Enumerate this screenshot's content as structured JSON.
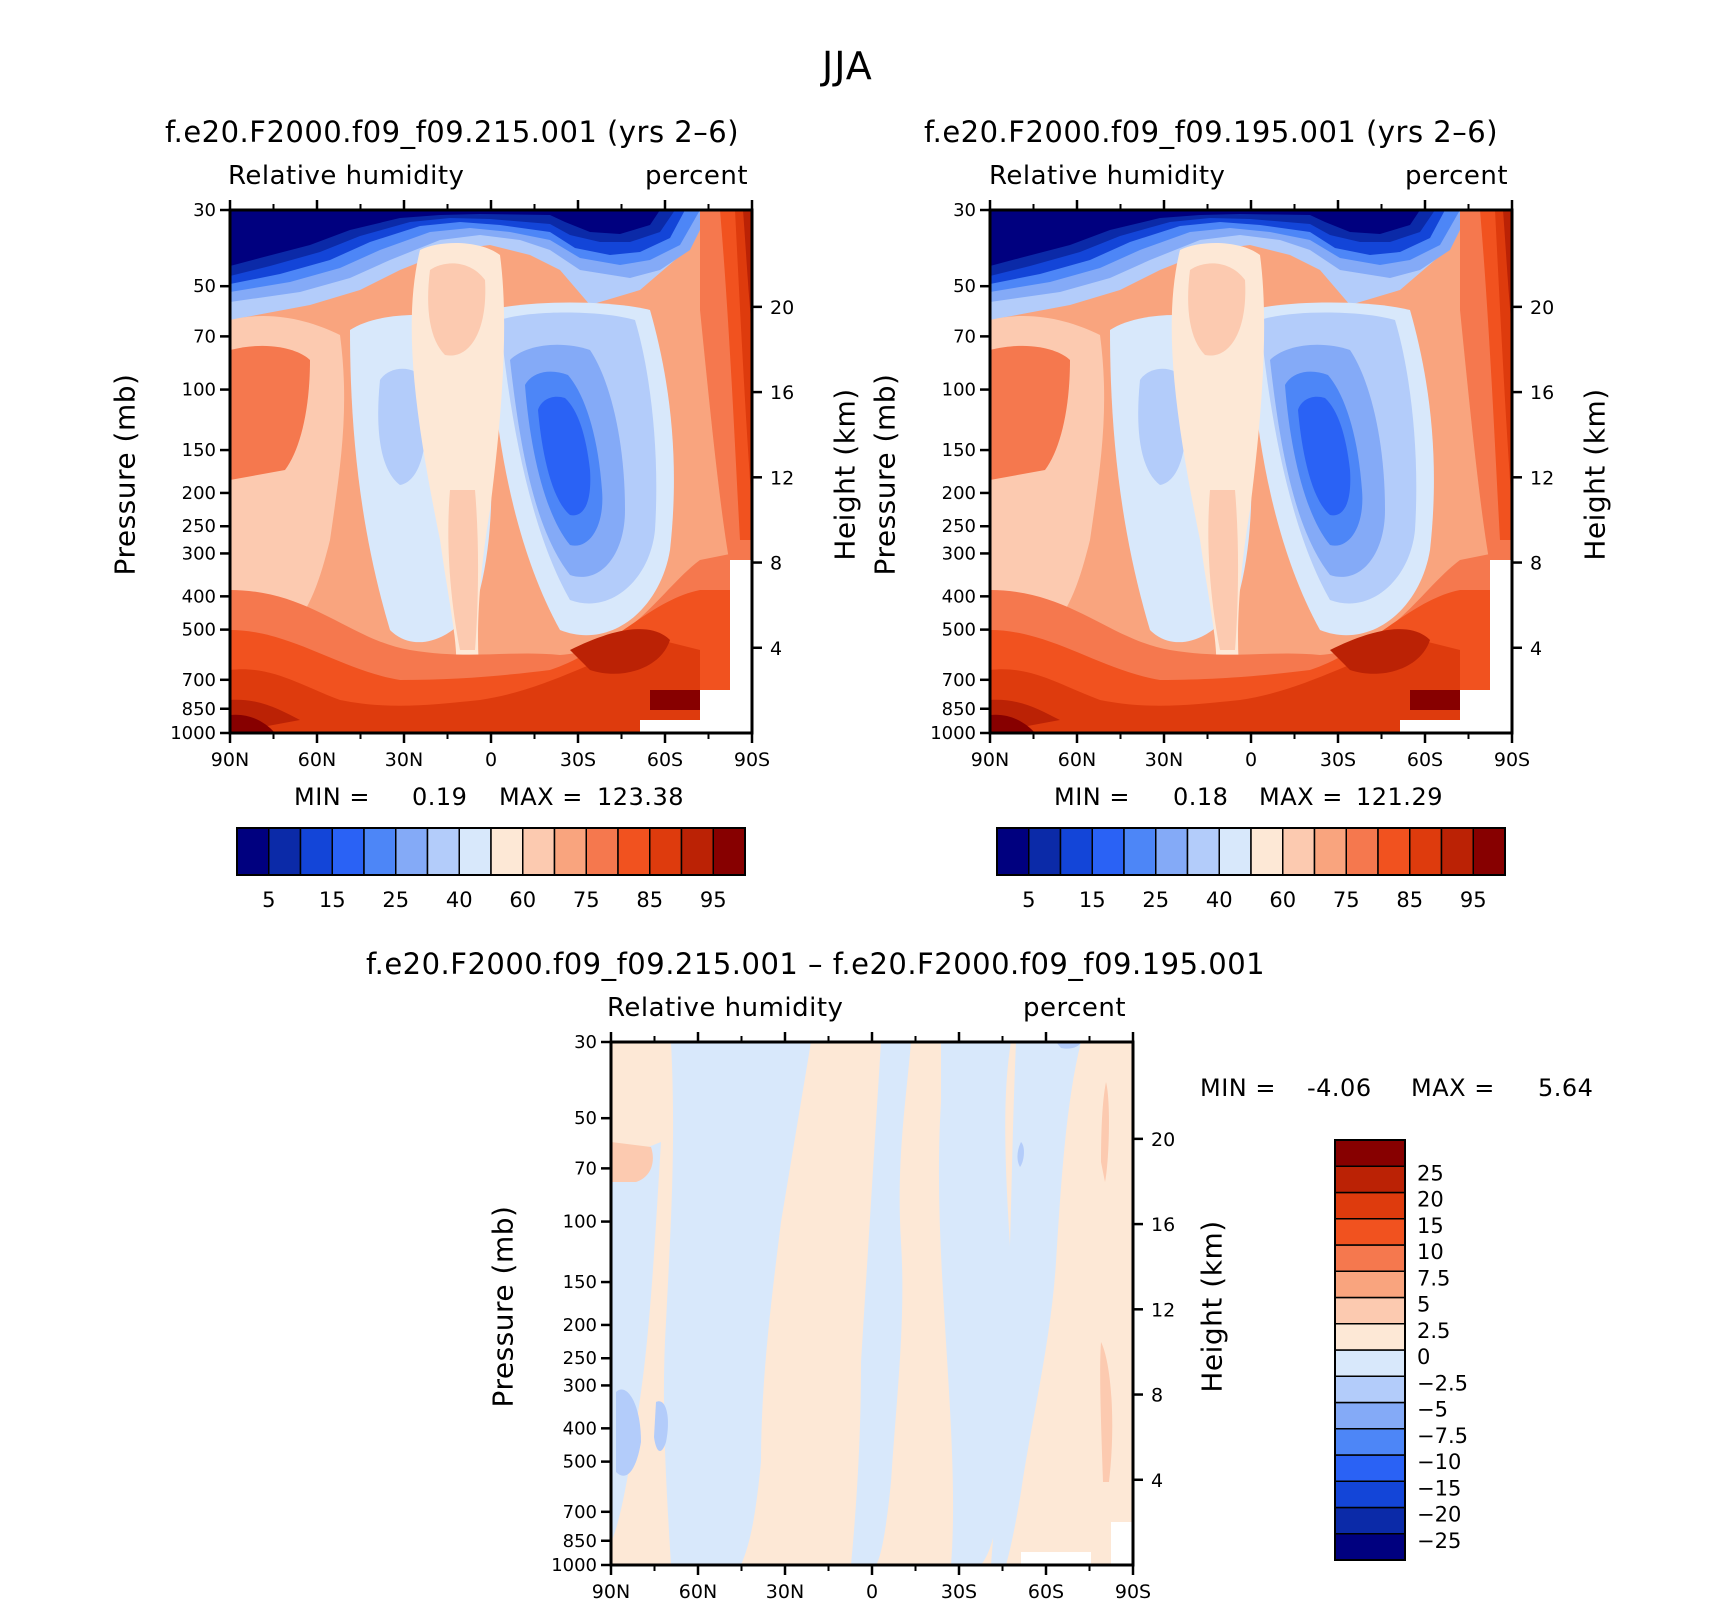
{
  "super_title": "JJA",
  "panels": [
    {
      "title": "f.e20.F2000.f09_f09.215.001 (yrs 2–6)",
      "left_label": "Relative humidity",
      "right_label": "percent",
      "y_axis_label": "Pressure (mb)",
      "y2_axis_label": "Height (km)",
      "min_text": "MIN =",
      "min_value": "0.19",
      "max_text": "MAX =",
      "max_value": "123.38"
    },
    {
      "title": "f.e20.F2000.f09_f09.195.001 (yrs 2–6)",
      "left_label": "Relative humidity",
      "right_label": "percent",
      "y_axis_label": "Pressure (mb)",
      "y2_axis_label": "Height (km)",
      "min_text": "MIN =",
      "min_value": "0.18",
      "max_text": "MAX =",
      "max_value": "121.29"
    },
    {
      "title": "f.e20.F2000.f09_f09.215.001 – f.e20.F2000.f09_f09.195.001",
      "left_label": "Relative humidity",
      "right_label": "percent",
      "y_axis_label": "Pressure (mb)",
      "y2_axis_label": "Height (km)",
      "min_text": "MIN =",
      "min_value": "-4.06",
      "max_text": "MAX =",
      "max_value": "5.64"
    }
  ],
  "colorbar_abs": {
    "colors": [
      "#00007f",
      "#0b2aa8",
      "#1345d8",
      "#2a62f5",
      "#4d86f7",
      "#84aaf7",
      "#b3ccfa",
      "#d8e8fb",
      "#fde8d6",
      "#fccab0",
      "#f9a47e",
      "#f5784e",
      "#f1521f",
      "#de3b0d",
      "#bb2205",
      "#870000"
    ],
    "labels": [
      "5",
      "15",
      "25",
      "40",
      "60",
      "75",
      "85",
      "95"
    ]
  },
  "colorbar_diff": {
    "colors": [
      "#00007f",
      "#0b2aa8",
      "#1345d8",
      "#2a62f5",
      "#4d86f7",
      "#84aaf7",
      "#b3ccfa",
      "#d8e8fb",
      "#fde8d6",
      "#fccab0",
      "#f9a47e",
      "#f5784e",
      "#f1521f",
      "#de3b0d",
      "#bb2205",
      "#870000"
    ],
    "labels": [
      "−25",
      "−20",
      "−15",
      "−10",
      "−7.5",
      "−5",
      "−2.5",
      "0",
      "2.5",
      "5",
      "7.5",
      "10",
      "15",
      "20",
      "25"
    ]
  },
  "chart_data": [
    {
      "type": "heatmap",
      "title": "f.e20.F2000.f09_f09.215.001 (yrs 2–6)",
      "variable": "Relative humidity",
      "units": "percent",
      "xlabel": "",
      "ylabel": "Pressure (mb)",
      "y2label": "Height (km)",
      "x_ticks": [
        "90N",
        "60N",
        "30N",
        "0",
        "30S",
        "60S",
        "90S"
      ],
      "y_ticks": [
        30,
        50,
        70,
        100,
        150,
        200,
        250,
        300,
        400,
        500,
        700,
        850,
        1000
      ],
      "y2_ticks": [
        20,
        16,
        12,
        8,
        4
      ],
      "y_scale": "log",
      "ylim": [
        1000,
        30
      ],
      "xlim": [
        "90N",
        "90S"
      ],
      "min": 0.19,
      "max": 123.38
    },
    {
      "type": "heatmap",
      "title": "f.e20.F2000.f09_f09.195.001 (yrs 2–6)",
      "variable": "Relative humidity",
      "units": "percent",
      "xlabel": "",
      "ylabel": "Pressure (mb)",
      "y2label": "Height (km)",
      "x_ticks": [
        "90N",
        "60N",
        "30N",
        "0",
        "30S",
        "60S",
        "90S"
      ],
      "y_ticks": [
        30,
        50,
        70,
        100,
        150,
        200,
        250,
        300,
        400,
        500,
        700,
        850,
        1000
      ],
      "y2_ticks": [
        20,
        16,
        12,
        8,
        4
      ],
      "y_scale": "log",
      "ylim": [
        1000,
        30
      ],
      "xlim": [
        "90N",
        "90S"
      ],
      "min": 0.18,
      "max": 121.29
    },
    {
      "type": "heatmap",
      "title": "f.e20.F2000.f09_f09.215.001 – f.e20.F2000.f09_f09.195.001",
      "variable": "Relative humidity",
      "units": "percent",
      "xlabel": "",
      "ylabel": "Pressure (mb)",
      "y2label": "Height (km)",
      "x_ticks": [
        "90N",
        "60N",
        "30N",
        "0",
        "30S",
        "60S",
        "90S"
      ],
      "y_ticks": [
        30,
        50,
        70,
        100,
        150,
        200,
        250,
        300,
        400,
        500,
        700,
        850,
        1000
      ],
      "y2_ticks": [
        20,
        16,
        12,
        8,
        4
      ],
      "y_scale": "log",
      "ylim": [
        1000,
        30
      ],
      "xlim": [
        "90N",
        "90S"
      ],
      "min": -4.06,
      "max": 5.64
    }
  ]
}
